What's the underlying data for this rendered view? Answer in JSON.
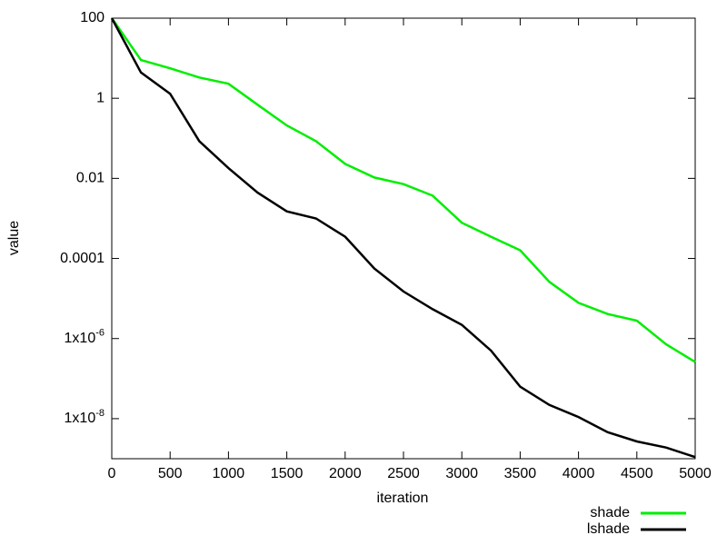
{
  "chart_data": {
    "type": "line",
    "xlabel": "iteration",
    "ylabel": "value",
    "x": [
      0,
      250,
      500,
      750,
      1000,
      1250,
      1500,
      1750,
      2000,
      2250,
      2500,
      2750,
      3000,
      3250,
      3500,
      3750,
      4000,
      4250,
      4500,
      4750,
      5000
    ],
    "series": [
      {
        "name": "shade",
        "color": "#00ee00",
        "values": [
          100,
          9,
          5.6,
          3.3,
          2.3,
          0.69,
          0.21,
          0.085,
          0.023,
          0.0105,
          0.0072,
          0.0037,
          0.00078,
          0.00035,
          0.00016,
          2.6e-05,
          7.8e-06,
          4.1e-06,
          2.8e-06,
          7.2e-07,
          2.6e-07
        ]
      },
      {
        "name": "lshade",
        "color": "#000000",
        "values": [
          100,
          4.4,
          1.3,
          0.085,
          0.018,
          0.0044,
          0.0015,
          0.001,
          0.00035,
          5.6e-05,
          1.5e-05,
          5.4e-06,
          2.2e-06,
          5e-07,
          6.3e-08,
          2.2e-08,
          1.1e-08,
          4.6e-09,
          2.7e-09,
          1.9e-09,
          1.1e-09
        ]
      }
    ],
    "xlim": [
      0,
      5000
    ],
    "xticks": [
      0,
      500,
      1000,
      1500,
      2000,
      2500,
      3000,
      3500,
      4000,
      4500,
      5000
    ],
    "ylim": [
      1e-09,
      100
    ],
    "yscale": "log",
    "yticks": [
      100,
      1,
      0.01,
      0.0001,
      {
        "value": 1e-06,
        "label": "1x10-6"
      },
      {
        "value": 1e-08,
        "label": "1x10-8"
      }
    ],
    "legend": "bottom-right-outside"
  }
}
